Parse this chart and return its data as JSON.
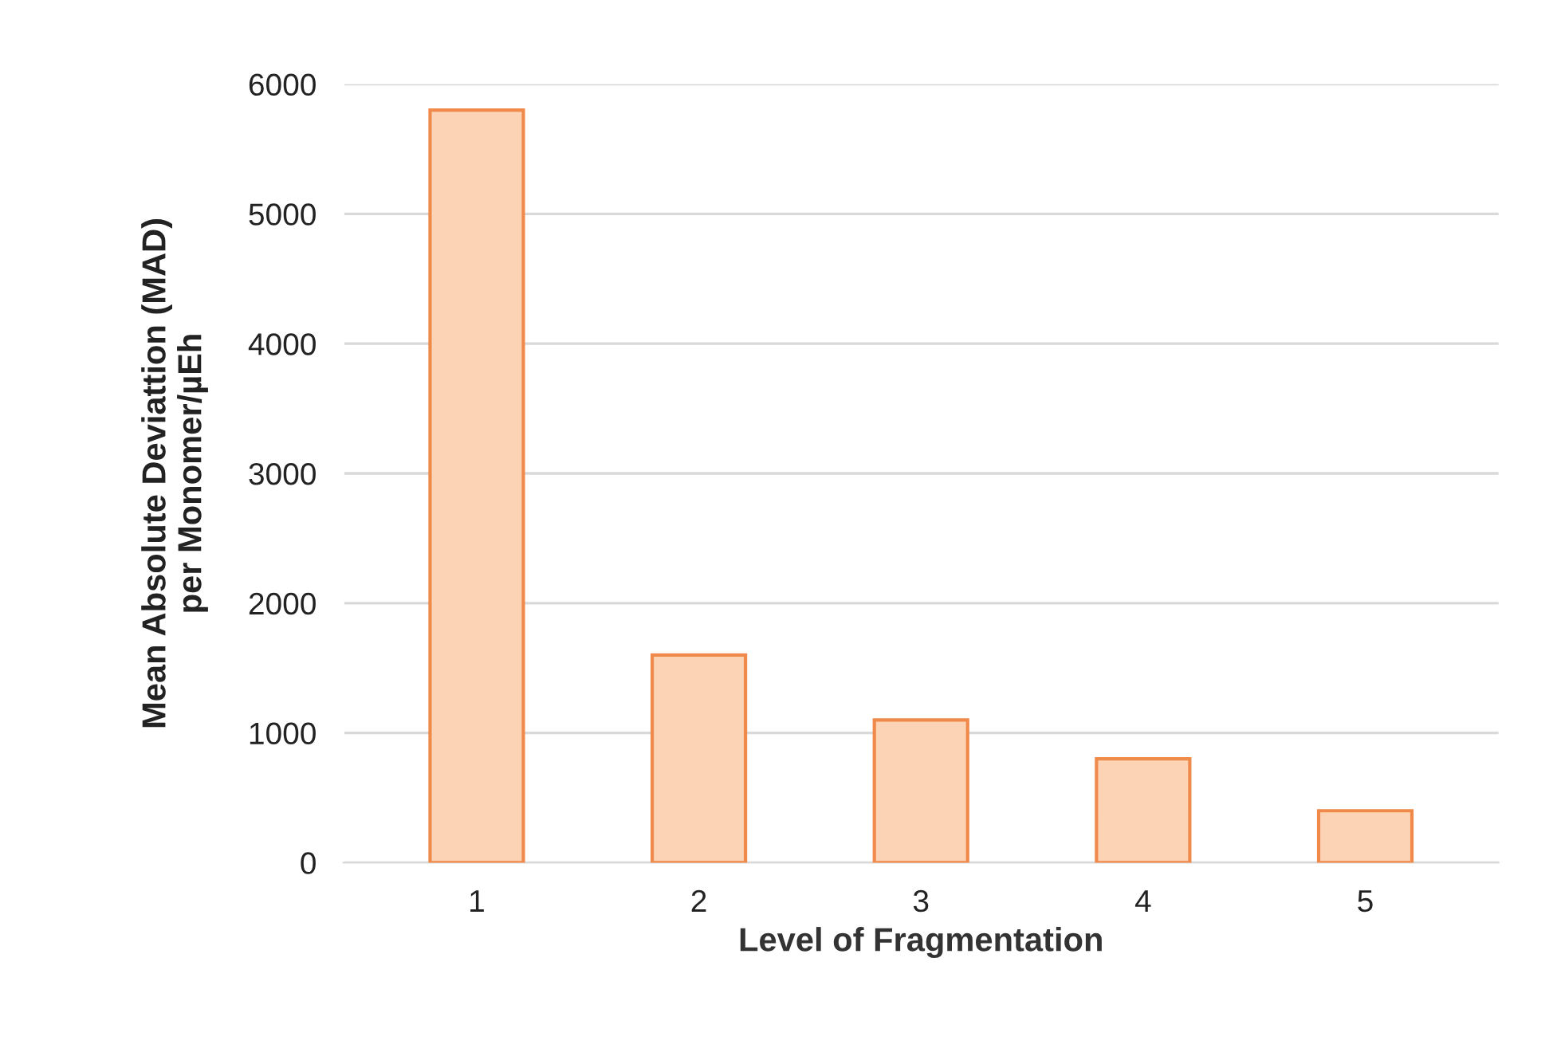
{
  "chart_data": {
    "type": "bar",
    "xlabel": "Level of Fragmentation",
    "ylabel": "Mean Absolute Deviattion (MAD)\nper Monomer/µEh",
    "categories": [
      "1",
      "2",
      "3",
      "4",
      "5"
    ],
    "values": [
      5800,
      1600,
      1100,
      800,
      400
    ],
    "color": "#fcd3b4",
    "ylim": [
      0,
      6000
    ],
    "yticks": [
      0,
      1000,
      2000,
      3000,
      4000,
      5000,
      6000
    ],
    "grid": "y"
  }
}
